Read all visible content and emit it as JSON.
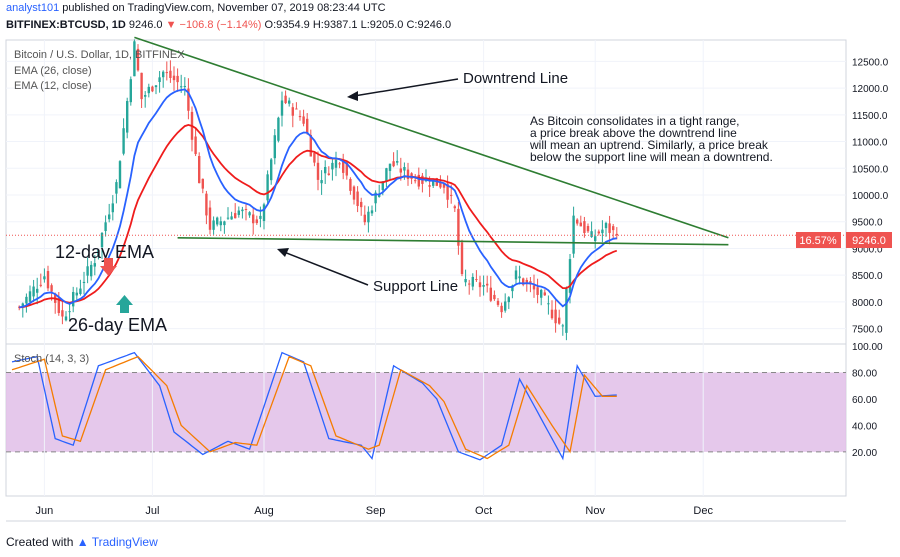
{
  "header": {
    "author": "analyst101",
    "published_text": "published on TradingView.com, November 07, 2019 08:23:44 UTC",
    "symbol": "BITFINEX:BTCUSD, 1D",
    "last_price": "9246.0",
    "change": "−106.8 (−1.14%)",
    "open": "O:9354.9",
    "high": "H:9387.1",
    "low": "L:9205.0",
    "close": "C:9246.0"
  },
  "legend": {
    "title": "Bitcoin / U.S. Dollar, 1D, BITFINEX",
    "ema26": "EMA (26, close)",
    "ema12": "EMA (12, close)",
    "stoch": "Stoch (14, 3, 3)"
  },
  "annotations": {
    "downtrend_label": "Downtrend Line",
    "support_label": "Support Line",
    "ema12_label": "12-day EMA",
    "ema26_label": "26-day EMA",
    "commentary": [
      "As Bitcoin consolidates in a tight range,",
      "a price break above the downtrend line",
      "will mean an uptrend. Similarly, a price break",
      "below the support line will mean a downtrend."
    ]
  },
  "price_badge": {
    "percent": "16.57%",
    "price": "9246.0"
  },
  "footer": {
    "created_with": "Created with",
    "brand": "TradingView"
  },
  "colors": {
    "up": "#26a69a",
    "down": "#ef5350",
    "ema12": "#2962ff",
    "ema26": "#ef1c1c",
    "trendline": "#2e7d32",
    "stoch_k": "#2962ff",
    "stoch_d": "#f57c00",
    "stoch_band": "#e1bee7"
  },
  "chart_data": [
    {
      "type": "candlestick",
      "title": "Bitcoin / U.S. Dollar, 1D, BITFINEX",
      "x_ticks": [
        "Jun",
        "Jul",
        "Aug",
        "Sep",
        "Oct",
        "Nov",
        "Dec"
      ],
      "x_tick_dates": [
        "2019-06-01",
        "2019-07-01",
        "2019-08-01",
        "2019-09-01",
        "2019-10-01",
        "2019-11-01",
        "2019-12-01"
      ],
      "y_ticks": [
        7500,
        8000,
        8500,
        9000,
        9500,
        10000,
        10500,
        11000,
        11500,
        12000,
        12500
      ],
      "ylim": [
        7300,
        12800
      ],
      "date_range": [
        "2019-05-23",
        "2019-11-07"
      ],
      "last_close": 9246.0,
      "ohlc_anchors": [
        {
          "date": "2019-05-25",
          "close": 7900
        },
        {
          "date": "2019-06-01",
          "close": 8500
        },
        {
          "date": "2019-06-06",
          "close": 7700
        },
        {
          "date": "2019-06-15",
          "close": 8800
        },
        {
          "date": "2019-06-21",
          "close": 10200
        },
        {
          "date": "2019-06-26",
          "close": 12800
        },
        {
          "date": "2019-06-28",
          "close": 11800
        },
        {
          "date": "2019-07-04",
          "close": 12300
        },
        {
          "date": "2019-07-10",
          "close": 12000
        },
        {
          "date": "2019-07-14",
          "close": 10300
        },
        {
          "date": "2019-07-17",
          "close": 9400
        },
        {
          "date": "2019-07-25",
          "close": 9700
        },
        {
          "date": "2019-07-31",
          "close": 9500
        },
        {
          "date": "2019-08-06",
          "close": 11800
        },
        {
          "date": "2019-08-12",
          "close": 11400
        },
        {
          "date": "2019-08-16",
          "close": 10300
        },
        {
          "date": "2019-08-22",
          "close": 10700
        },
        {
          "date": "2019-08-29",
          "close": 9500
        },
        {
          "date": "2019-09-05",
          "close": 10600
        },
        {
          "date": "2019-09-12",
          "close": 10300
        },
        {
          "date": "2019-09-20",
          "close": 10200
        },
        {
          "date": "2019-09-23",
          "close": 9700
        },
        {
          "date": "2019-09-25",
          "close": 8400
        },
        {
          "date": "2019-10-01",
          "close": 8300
        },
        {
          "date": "2019-10-06",
          "close": 7900
        },
        {
          "date": "2019-10-10",
          "close": 8500
        },
        {
          "date": "2019-10-17",
          "close": 8100
        },
        {
          "date": "2019-10-23",
          "close": 7500
        },
        {
          "date": "2019-10-25",
          "close": 8900
        },
        {
          "date": "2019-10-26",
          "close": 9600
        },
        {
          "date": "2019-10-31",
          "close": 9200
        },
        {
          "date": "2019-11-04",
          "close": 9400
        },
        {
          "date": "2019-11-07",
          "close": 9246
        }
      ],
      "indicators": [
        {
          "name": "EMA (12, close)",
          "color": "#2962ff"
        },
        {
          "name": "EMA (26, close)",
          "color": "#ef1c1c"
        }
      ],
      "trendlines": [
        {
          "label": "Downtrend Line",
          "points": [
            {
              "date": "2019-06-26",
              "value": 12950
            },
            {
              "date": "2019-12-08",
              "value": 9200
            }
          ]
        },
        {
          "label": "Support Line",
          "points": [
            {
              "date": "2019-07-08",
              "value": 9200
            },
            {
              "date": "2019-12-08",
              "value": 9070
            }
          ]
        }
      ]
    },
    {
      "type": "line",
      "title": "Stoch (14, 3, 3)",
      "y_ticks": [
        20,
        40,
        60,
        80,
        100
      ],
      "ylim": [
        0,
        100
      ],
      "overbought": 80,
      "oversold": 20,
      "x_ticks": [
        "Jun",
        "Jul",
        "Aug",
        "Sep",
        "Oct",
        "Nov",
        "Dec"
      ],
      "series": [
        {
          "color": "#2962ff",
          "anchors": [
            {
              "date": "2019-05-23",
              "value": 88
            },
            {
              "date": "2019-05-30",
              "value": 92
            },
            {
              "date": "2019-06-04",
              "value": 30
            },
            {
              "date": "2019-06-09",
              "value": 25
            },
            {
              "date": "2019-06-16",
              "value": 85
            },
            {
              "date": "2019-06-26",
              "value": 95
            },
            {
              "date": "2019-07-03",
              "value": 70
            },
            {
              "date": "2019-07-07",
              "value": 35
            },
            {
              "date": "2019-07-15",
              "value": 18
            },
            {
              "date": "2019-07-22",
              "value": 28
            },
            {
              "date": "2019-07-28",
              "value": 22
            },
            {
              "date": "2019-08-06",
              "value": 95
            },
            {
              "date": "2019-08-12",
              "value": 88
            },
            {
              "date": "2019-08-19",
              "value": 30
            },
            {
              "date": "2019-08-28",
              "value": 25
            },
            {
              "date": "2019-08-31",
              "value": 15
            },
            {
              "date": "2019-09-06",
              "value": 85
            },
            {
              "date": "2019-09-14",
              "value": 72
            },
            {
              "date": "2019-09-18",
              "value": 60
            },
            {
              "date": "2019-09-24",
              "value": 20
            },
            {
              "date": "2019-09-30",
              "value": 14
            },
            {
              "date": "2019-10-06",
              "value": 25
            },
            {
              "date": "2019-10-11",
              "value": 75
            },
            {
              "date": "2019-10-18",
              "value": 40
            },
            {
              "date": "2019-10-23",
              "value": 15
            },
            {
              "date": "2019-10-27",
              "value": 85
            },
            {
              "date": "2019-11-01",
              "value": 62
            },
            {
              "date": "2019-11-07",
              "value": 63
            }
          ]
        },
        {
          "color": "#f57c00",
          "anchors": [
            {
              "date": "2019-05-23",
              "value": 82
            },
            {
              "date": "2019-06-01",
              "value": 90
            },
            {
              "date": "2019-06-06",
              "value": 32
            },
            {
              "date": "2019-06-11",
              "value": 28
            },
            {
              "date": "2019-06-18",
              "value": 82
            },
            {
              "date": "2019-06-27",
              "value": 92
            },
            {
              "date": "2019-07-05",
              "value": 70
            },
            {
              "date": "2019-07-09",
              "value": 40
            },
            {
              "date": "2019-07-17",
              "value": 20
            },
            {
              "date": "2019-07-24",
              "value": 27
            },
            {
              "date": "2019-07-30",
              "value": 25
            },
            {
              "date": "2019-08-08",
              "value": 92
            },
            {
              "date": "2019-08-14",
              "value": 85
            },
            {
              "date": "2019-08-21",
              "value": 32
            },
            {
              "date": "2019-08-30",
              "value": 22
            },
            {
              "date": "2019-09-02",
              "value": 25
            },
            {
              "date": "2019-09-08",
              "value": 82
            },
            {
              "date": "2019-09-16",
              "value": 70
            },
            {
              "date": "2019-09-20",
              "value": 58
            },
            {
              "date": "2019-09-26",
              "value": 22
            },
            {
              "date": "2019-10-02",
              "value": 15
            },
            {
              "date": "2019-10-08",
              "value": 25
            },
            {
              "date": "2019-10-13",
              "value": 70
            },
            {
              "date": "2019-10-20",
              "value": 40
            },
            {
              "date": "2019-10-25",
              "value": 20
            },
            {
              "date": "2019-10-29",
              "value": 78
            },
            {
              "date": "2019-11-03",
              "value": 62
            },
            {
              "date": "2019-11-07",
              "value": 62
            }
          ]
        }
      ]
    }
  ]
}
